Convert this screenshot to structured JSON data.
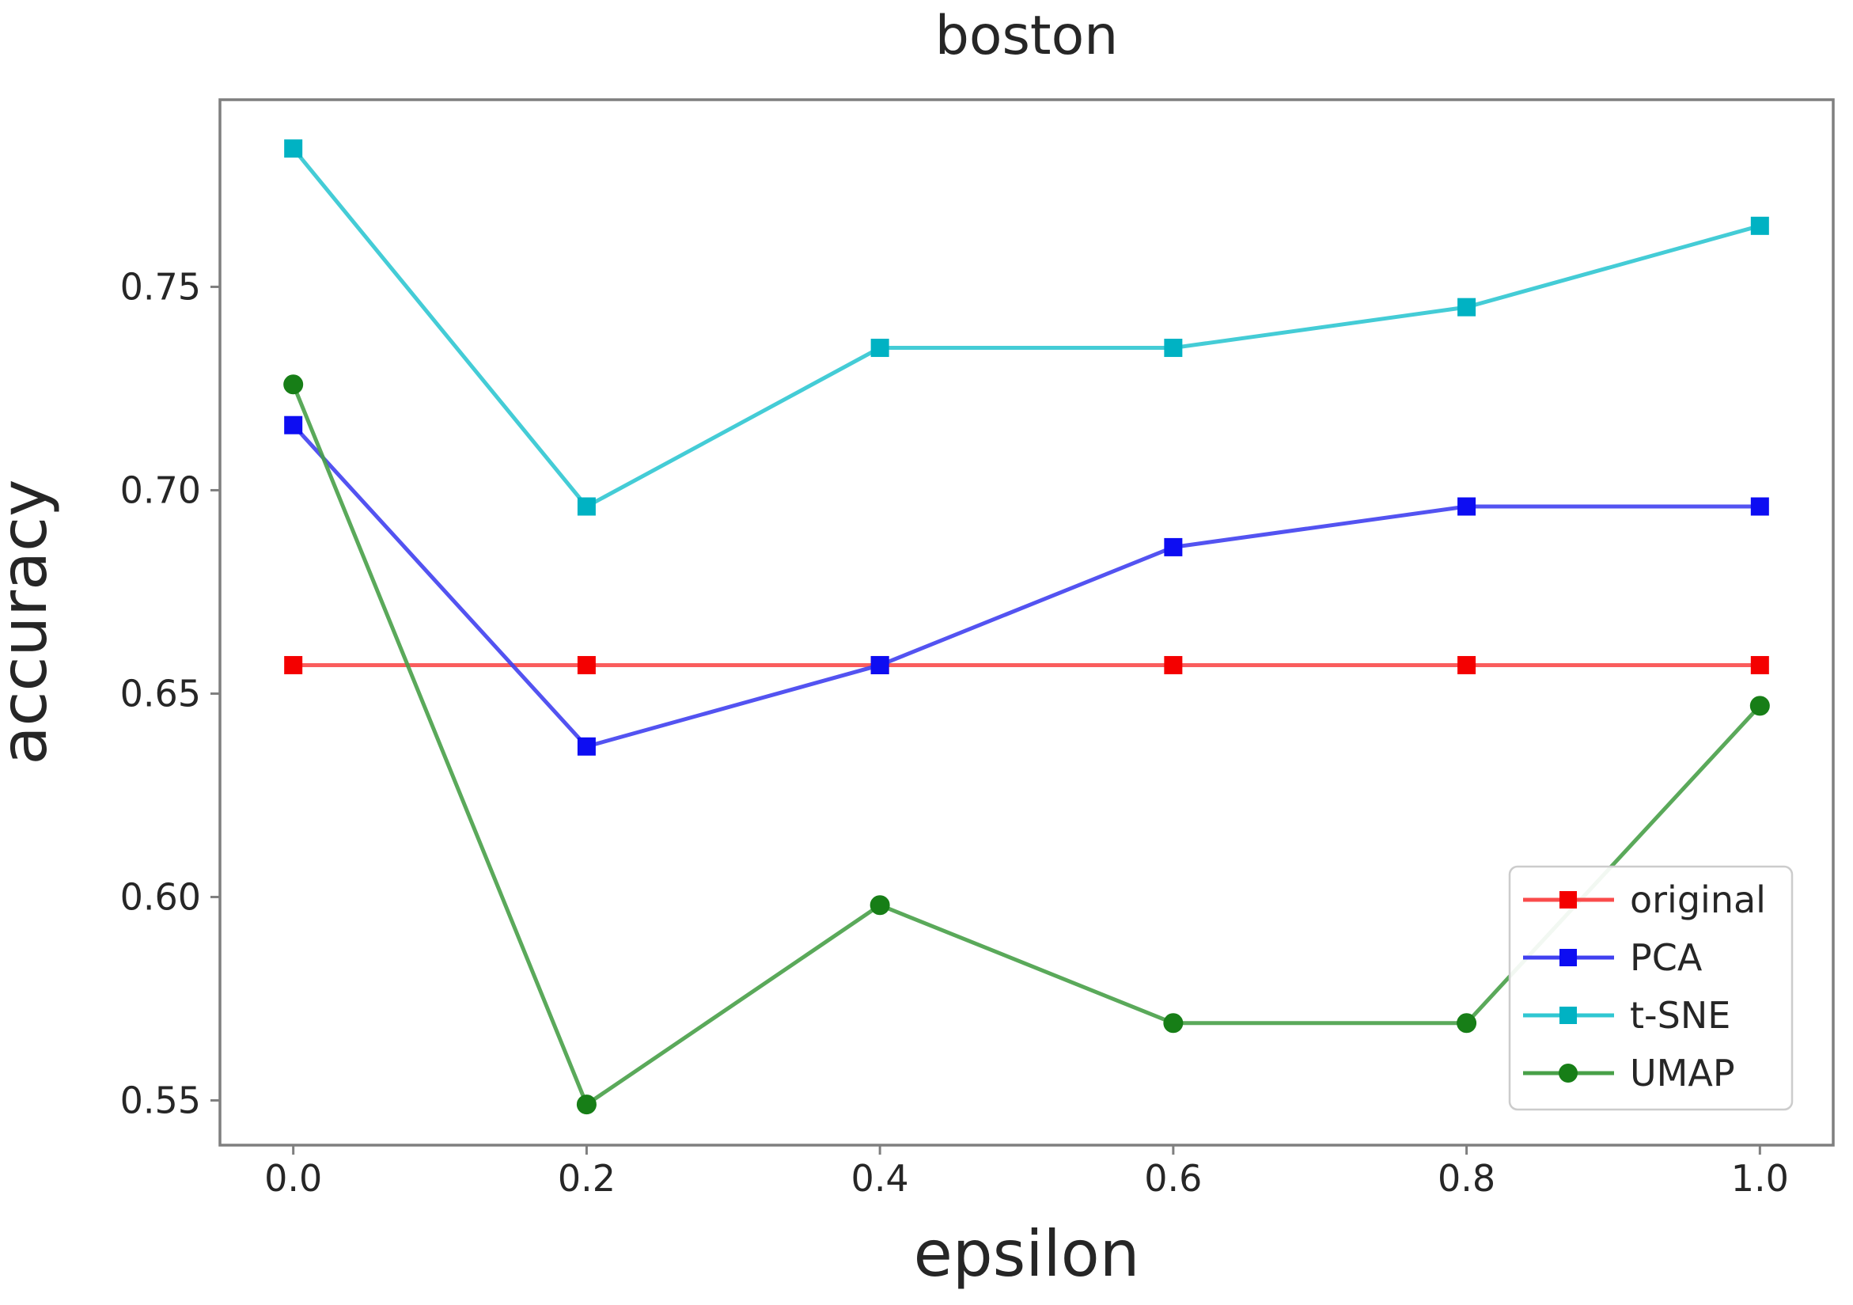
{
  "chart_data": {
    "type": "line",
    "title": "boston",
    "xlabel": "epsilon",
    "ylabel": "accuracy",
    "x": [
      0.0,
      0.2,
      0.4,
      0.6,
      0.8,
      1.0
    ],
    "x_tick_labels": [
      "0.0",
      "0.2",
      "0.4",
      "0.6",
      "0.8",
      "1.0"
    ],
    "y_tick_values": [
      0.55,
      0.6,
      0.65,
      0.7,
      0.75
    ],
    "y_tick_labels": [
      "0.55",
      "0.60",
      "0.65",
      "0.70",
      "0.75"
    ],
    "xlim": [
      -0.05,
      1.05
    ],
    "ylim": [
      0.539,
      0.796
    ],
    "grid": false,
    "axis_color": "#7f7f7f",
    "text_color": "#262626",
    "legend": {
      "position": "lower right",
      "border_color": "#cccccc"
    },
    "series": [
      {
        "name": "original",
        "marker": "square",
        "color": "#f40000",
        "line_color": "#fa4b4b",
        "values": [
          0.657,
          0.657,
          0.657,
          0.657,
          0.657,
          0.657
        ]
      },
      {
        "name": "PCA",
        "marker": "square",
        "color": "#0d0df2",
        "line_color": "#4040f0",
        "values": [
          0.716,
          0.637,
          0.657,
          0.686,
          0.696,
          0.696
        ]
      },
      {
        "name": "t-SNE",
        "marker": "square",
        "color": "#00b2c3",
        "line_color": "#30c7d2",
        "values": [
          0.784,
          0.696,
          0.735,
          0.735,
          0.745,
          0.765
        ]
      },
      {
        "name": "UMAP",
        "marker": "circle",
        "color": "#177e17",
        "line_color": "#48a048",
        "values": [
          0.726,
          0.549,
          0.598,
          0.569,
          0.569,
          0.647
        ]
      }
    ]
  }
}
